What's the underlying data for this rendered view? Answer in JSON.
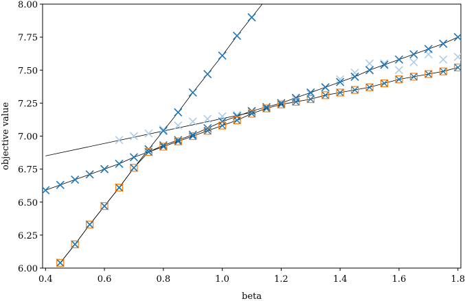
{
  "chart_data": {
    "type": "scatter",
    "title": "",
    "xlabel": "beta",
    "ylabel": "objective value",
    "xlim": [
      0.39,
      1.81
    ],
    "ylim": [
      6.0,
      8.0
    ],
    "xticks": [
      "0.4",
      "0.6",
      "0.8",
      "1.0",
      "1.2",
      "1.4",
      "1.6",
      "1.8"
    ],
    "yticks": [
      "6.00",
      "6.25",
      "6.50",
      "6.75",
      "7.00",
      "7.25",
      "7.50",
      "7.75",
      "8.00"
    ],
    "grid": false,
    "legend": "none",
    "colors": {
      "primary_marker": "#1f77b4",
      "square_marker": "#ff7f0e",
      "faded_marker": "#aecde8",
      "line": "#000000"
    },
    "series": [
      {
        "style": "line",
        "x": [
          0.4,
          1.1
        ],
        "values": [
          6.85,
          7.18
        ]
      },
      {
        "style": "faded_x",
        "x": [
          0.65,
          0.7,
          0.75,
          0.8,
          0.85,
          0.9,
          0.95,
          1.0,
          1.05,
          1.1,
          1.15,
          1.2,
          1.25,
          1.3,
          1.35,
          1.4,
          1.45,
          1.5,
          1.55,
          1.6,
          1.65,
          1.7,
          1.75,
          1.8
        ],
        "values": [
          6.97,
          7.0,
          7.02,
          7.05,
          7.08,
          7.11,
          7.13,
          7.15,
          7.16,
          7.18,
          7.21,
          7.24,
          7.28,
          7.32,
          7.37,
          7.43,
          7.48,
          7.55,
          7.55,
          7.5,
          7.56,
          7.62,
          7.58,
          7.6
        ]
      },
      {
        "style": "line_x",
        "x": [
          0.4,
          0.45,
          0.5,
          0.55,
          0.6,
          0.65,
          0.7,
          0.75,
          0.8,
          0.85,
          0.9,
          0.95,
          1.0,
          1.05,
          1.1,
          1.15,
          1.2,
          1.25,
          1.3,
          1.35,
          1.4,
          1.45,
          1.5,
          1.55,
          1.6,
          1.65,
          1.7,
          1.75,
          1.8
        ],
        "values": [
          6.59,
          6.63,
          6.67,
          6.71,
          6.75,
          6.79,
          6.84,
          6.88,
          6.93,
          6.97,
          7.01,
          7.06,
          7.11,
          7.15,
          7.19,
          7.22,
          7.25,
          7.29,
          7.33,
          7.37,
          7.41,
          7.45,
          7.5,
          7.54,
          7.58,
          7.62,
          7.66,
          7.7,
          7.75
        ]
      },
      {
        "style": "steep_x",
        "x": [
          0.45,
          0.5,
          0.55,
          0.6,
          0.65,
          0.7,
          0.75,
          0.8,
          0.85,
          0.9,
          0.95,
          1.0,
          1.05,
          1.1
        ],
        "values": [
          6.04,
          6.18,
          6.33,
          6.47,
          6.61,
          6.76,
          6.9,
          7.04,
          7.18,
          7.33,
          7.47,
          7.61,
          7.76,
          7.9
        ]
      },
      {
        "style": "square_x",
        "x": [
          0.45,
          0.5,
          0.55,
          0.6,
          0.65,
          0.7,
          0.75,
          0.8,
          0.85,
          0.9,
          0.95,
          1.0,
          1.05,
          1.1,
          1.15,
          1.2,
          1.25,
          1.3,
          1.35,
          1.4,
          1.45,
          1.5,
          1.55,
          1.6,
          1.65,
          1.7,
          1.75,
          1.8
        ],
        "values": [
          6.04,
          6.18,
          6.33,
          6.47,
          6.61,
          6.76,
          6.88,
          6.92,
          6.96,
          7.0,
          7.04,
          7.08,
          7.12,
          7.17,
          7.21,
          7.24,
          7.26,
          7.28,
          7.31,
          7.33,
          7.35,
          7.37,
          7.4,
          7.43,
          7.45,
          7.47,
          7.49,
          7.52
        ]
      }
    ]
  }
}
